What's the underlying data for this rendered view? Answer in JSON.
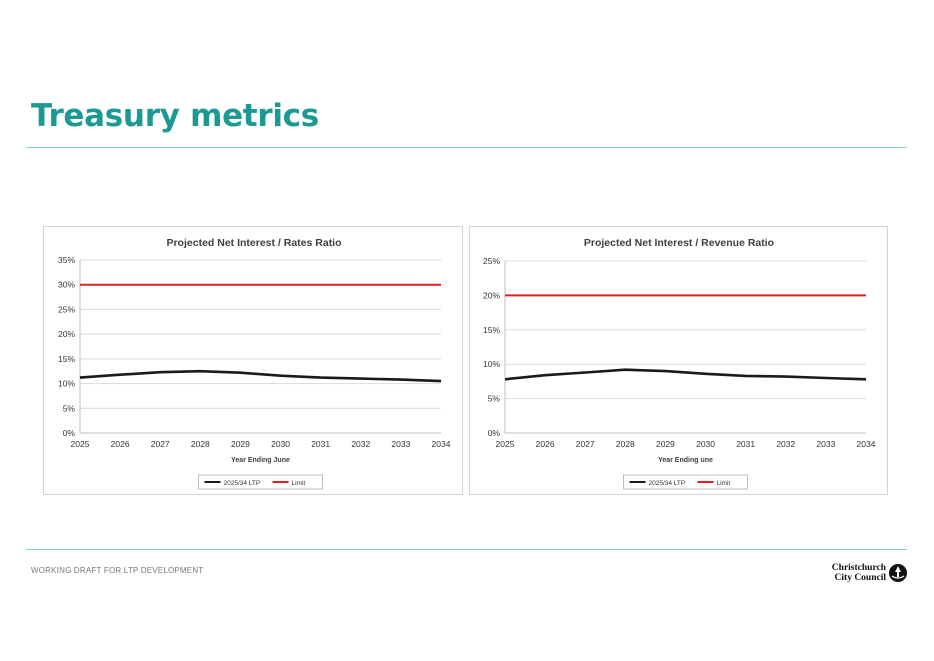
{
  "page": {
    "title": "Treasury metrics",
    "footer": "WORKING DRAFT FOR LTP DEVELOPMENT",
    "logo": {
      "line1": "Christchurch",
      "line2": "City Council",
      "icon": "council-logo-icon"
    }
  },
  "colors": {
    "title": "#1a9a92",
    "rule": "#7fcfc3",
    "series_ltp": "#1a1a1a",
    "series_limit": "#e02020"
  },
  "chart_data": [
    {
      "type": "line",
      "title": "Projected Net Interest / Rates Ratio",
      "xlabel": "Year Ending June",
      "ylabel": "",
      "categories": [
        "2025",
        "2026",
        "2027",
        "2028",
        "2029",
        "2030",
        "2031",
        "2032",
        "2033",
        "2034"
      ],
      "ylim": [
        0,
        35
      ],
      "yticks": [
        0,
        5,
        10,
        15,
        20,
        25,
        30,
        35
      ],
      "ytick_labels": [
        "0%",
        "5%",
        "10%",
        "15%",
        "20%",
        "25%",
        "30%",
        "35%"
      ],
      "grid": true,
      "legend_position": "bottom-center",
      "series": [
        {
          "name": "2025/34 LTP",
          "color": "#1a1a1a",
          "values": [
            11.2,
            11.8,
            12.3,
            12.5,
            12.2,
            11.6,
            11.2,
            11.0,
            10.8,
            10.5
          ]
        },
        {
          "name": "Limit",
          "color": "#e02020",
          "values": [
            30,
            30,
            30,
            30,
            30,
            30,
            30,
            30,
            30,
            30
          ]
        }
      ]
    },
    {
      "type": "line",
      "title": "Projected Net Interest / Revenue Ratio",
      "xlabel": "Year Ending une",
      "ylabel": "",
      "categories": [
        "2025",
        "2026",
        "2027",
        "2028",
        "2029",
        "2030",
        "2031",
        "2032",
        "2033",
        "2034"
      ],
      "ylim": [
        0,
        25
      ],
      "yticks": [
        0,
        5,
        10,
        15,
        20,
        25
      ],
      "ytick_labels": [
        "0%",
        "5%",
        "10%",
        "15%",
        "20%",
        "25%"
      ],
      "grid": true,
      "legend_position": "bottom-center",
      "series": [
        {
          "name": "2025/34 LTP",
          "color": "#1a1a1a",
          "values": [
            7.8,
            8.4,
            8.8,
            9.2,
            9.0,
            8.6,
            8.3,
            8.2,
            8.0,
            7.8
          ]
        },
        {
          "name": "Limit",
          "color": "#e02020",
          "values": [
            20,
            20,
            20,
            20,
            20,
            20,
            20,
            20,
            20,
            20
          ]
        }
      ]
    }
  ]
}
